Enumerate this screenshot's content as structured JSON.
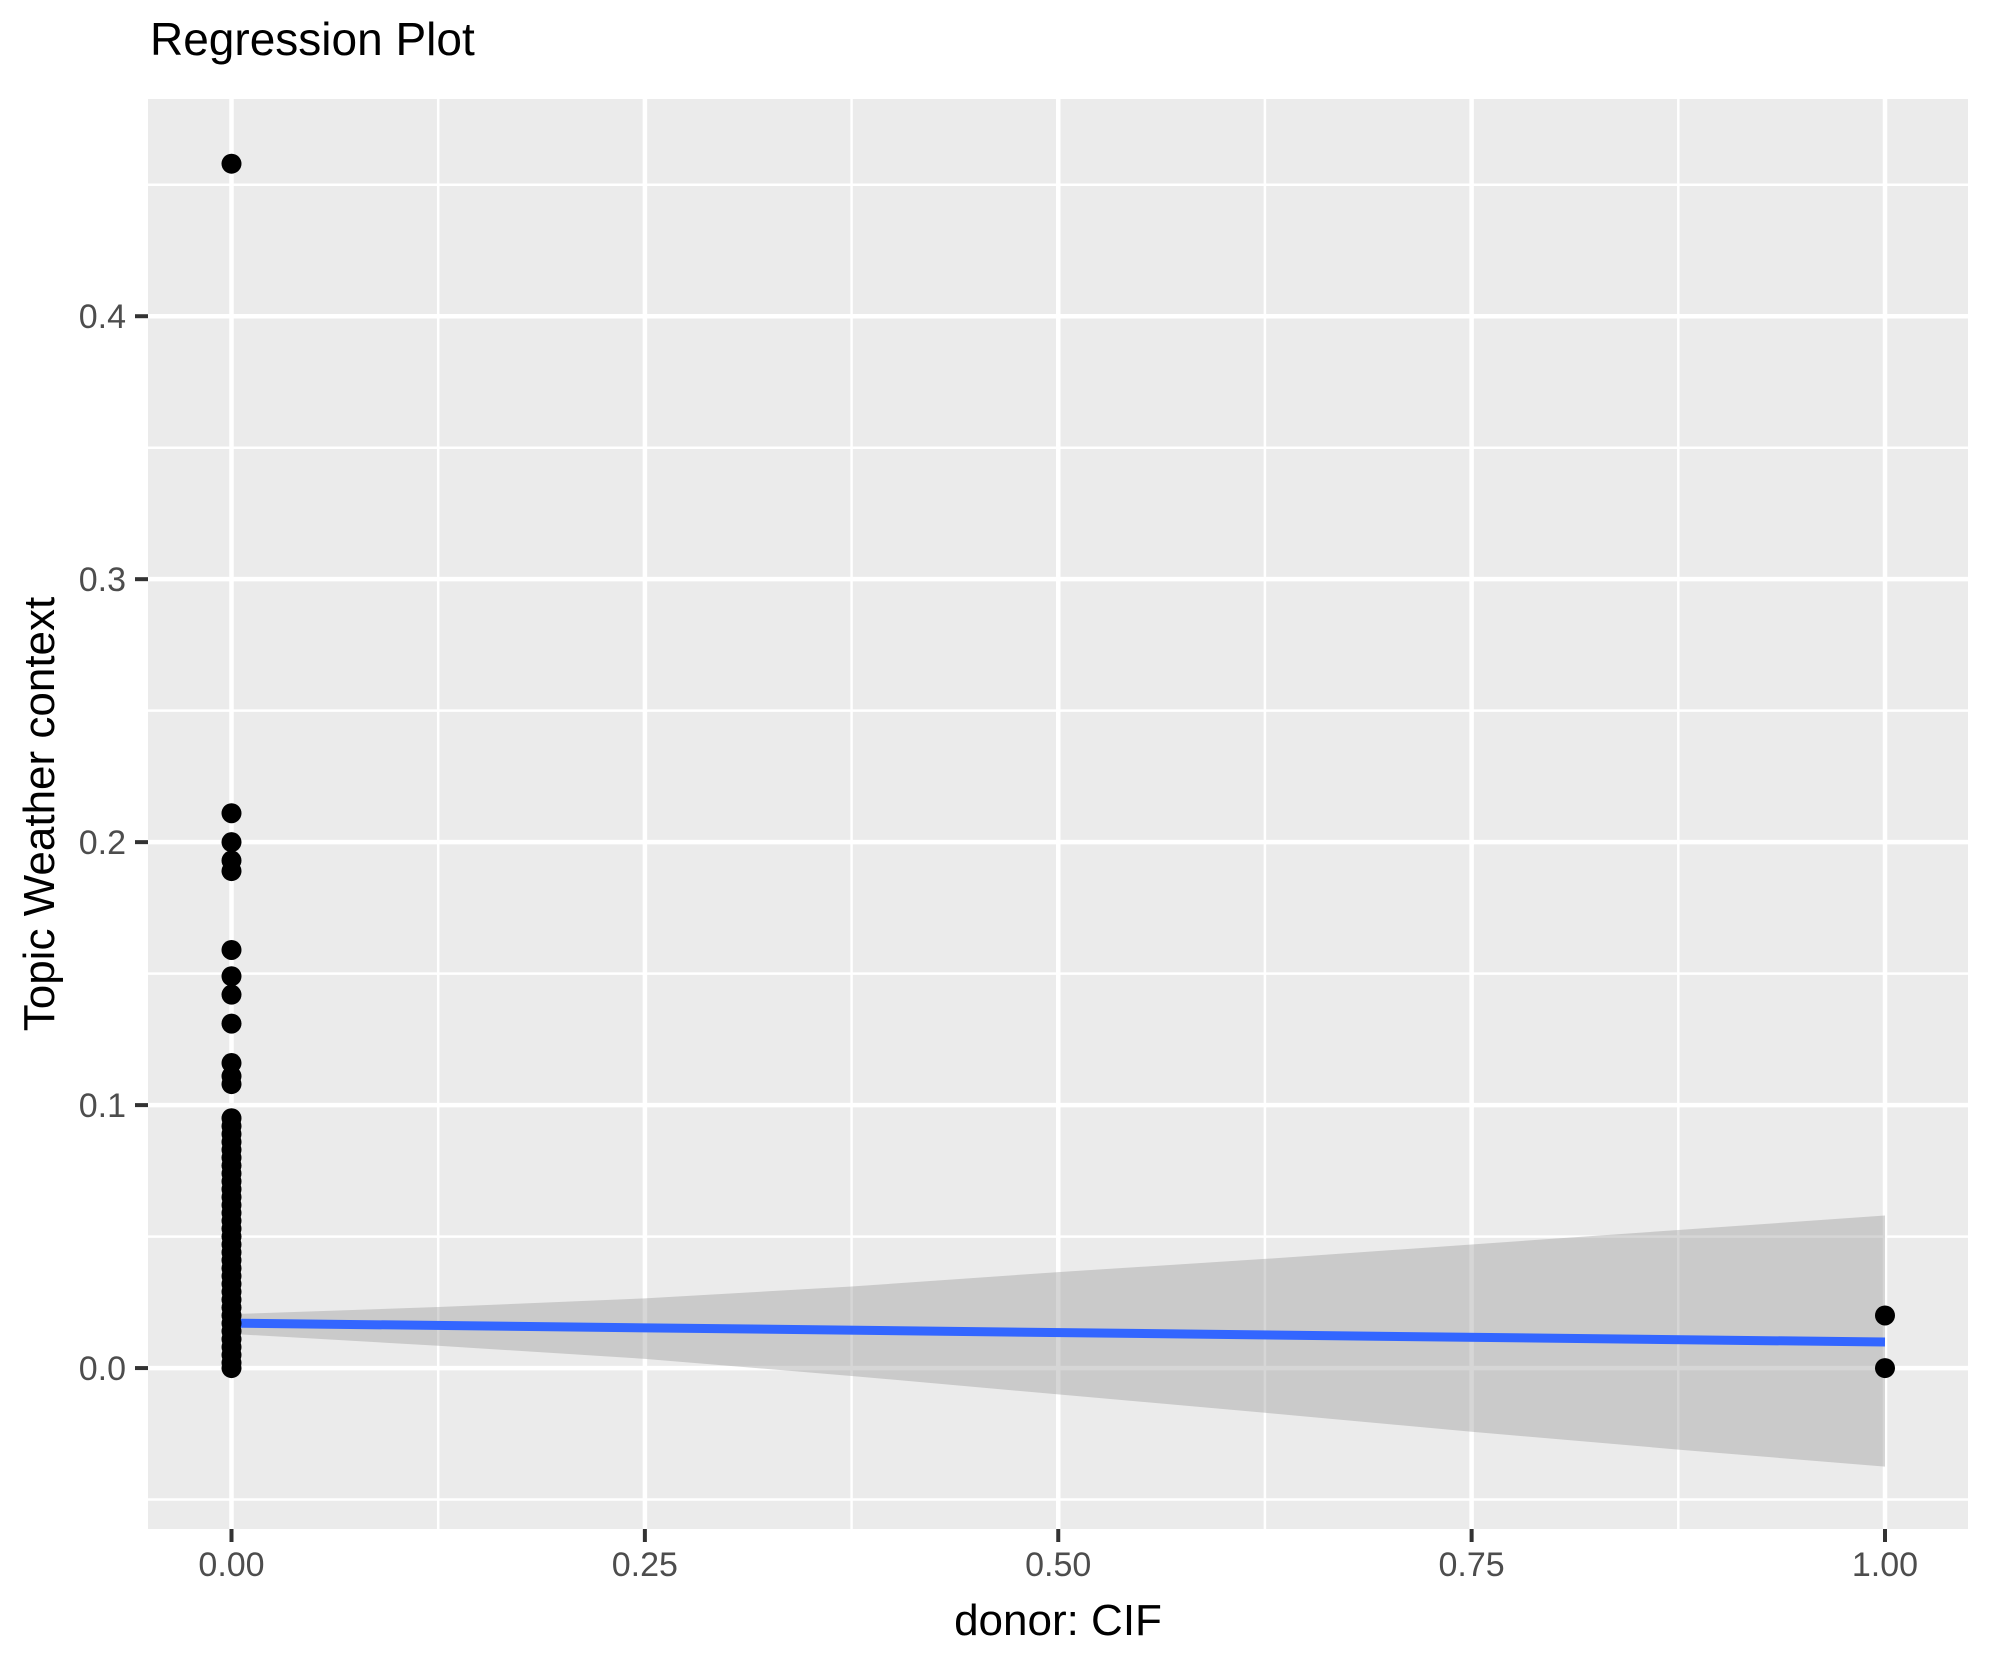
{
  "chart_data": {
    "type": "scatter",
    "title": "Regression Plot",
    "xlabel": "donor: CIF",
    "ylabel": "Topic Weather context",
    "xlim": [
      -0.0505,
      1.0502
    ],
    "ylim": [
      -0.0612,
      0.4826
    ],
    "grid": "major+minor",
    "legend": "none",
    "x_ticks": {
      "values": [
        0,
        0.25,
        0.5,
        0.75,
        1.0
      ],
      "labels": [
        "0.00",
        "0.25",
        "0.50",
        "0.75",
        "1.00"
      ]
    },
    "y_ticks": {
      "values": [
        0,
        0.1,
        0.2,
        0.3,
        0.4
      ],
      "labels": [
        "0.0",
        "0.1",
        "0.2",
        "0.3",
        "0.4"
      ]
    },
    "x_minor_gridlines": [
      0.125,
      0.375,
      0.625,
      0.875
    ],
    "y_minor_gridlines": [
      -0.05,
      0.05,
      0.15,
      0.25,
      0.35,
      0.45
    ],
    "points": [
      [
        0,
        0.458
      ],
      [
        0,
        0.211
      ],
      [
        0,
        0.2
      ],
      [
        0,
        0.193
      ],
      [
        0,
        0.189
      ],
      [
        0,
        0.159
      ],
      [
        0,
        0.149
      ],
      [
        0,
        0.142
      ],
      [
        0,
        0.131
      ],
      [
        0,
        0.116
      ],
      [
        0,
        0.111
      ],
      [
        0,
        0.108
      ],
      [
        0,
        0.095
      ],
      [
        0,
        0.092
      ],
      [
        0,
        0.089
      ],
      [
        0,
        0.086
      ],
      [
        0,
        0.083
      ],
      [
        0,
        0.08
      ],
      [
        0,
        0.077
      ],
      [
        0,
        0.074
      ],
      [
        0,
        0.071
      ],
      [
        0,
        0.068
      ],
      [
        0,
        0.065
      ],
      [
        0,
        0.062
      ],
      [
        0,
        0.059
      ],
      [
        0,
        0.056
      ],
      [
        0,
        0.053
      ],
      [
        0,
        0.05
      ],
      [
        0,
        0.047
      ],
      [
        0,
        0.044
      ],
      [
        0,
        0.041
      ],
      [
        0,
        0.038
      ],
      [
        0,
        0.035
      ],
      [
        0,
        0.032
      ],
      [
        0,
        0.029
      ],
      [
        0,
        0.026
      ],
      [
        0,
        0.023
      ],
      [
        0,
        0.02
      ],
      [
        0,
        0.017
      ],
      [
        0,
        0.014
      ],
      [
        0,
        0.011
      ],
      [
        0,
        0.008
      ],
      [
        0,
        0.005
      ],
      [
        0,
        0.002
      ],
      [
        0,
        0.0
      ],
      [
        1,
        0.02
      ],
      [
        1,
        0.0
      ]
    ],
    "regression_line": {
      "x": [
        0,
        1
      ],
      "y": [
        0.0171,
        0.0099
      ]
    },
    "confidence_band": {
      "x": [
        0,
        0.125,
        0.25,
        0.375,
        0.5,
        0.625,
        0.75,
        0.875,
        1.0
      ],
      "upper": [
        0.0205,
        0.0232,
        0.0265,
        0.031,
        0.0365,
        0.0415,
        0.047,
        0.0525,
        0.058
      ],
      "lower": [
        0.013,
        0.0085,
        0.0035,
        -0.003,
        -0.01,
        -0.017,
        -0.0242,
        -0.031,
        -0.0375
      ]
    },
    "colors": {
      "figure_background": "#FFFFFF",
      "panel_background": "#EBEBEB",
      "grid_color": "#FFFFFF",
      "point_color": "#000000",
      "line_color": "#3366FF",
      "band_color": "#999999",
      "band_opacity": 0.4,
      "tick_label_color": "#4D4D4D",
      "tick_mark_color": "#333333",
      "text_color": "#000000"
    }
  }
}
